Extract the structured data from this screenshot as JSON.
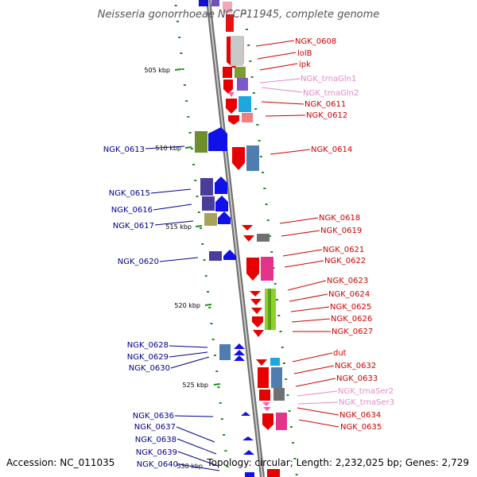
{
  "map": {
    "title": "Neisseria gonorrhoeae NCCP11945, complete genome",
    "accession": "Accession: NC_011035",
    "summary": "Topology: circular; Length: 2,232,025 bp; Genes: 2,729"
  },
  "scale_ticks": [
    "505 kbp",
    "510 kbp",
    "515 kbp",
    "520 kbp",
    "525 kbp",
    "530 kbp"
  ],
  "colors": {
    "plus_label": "#cc0000",
    "minus_label": "#00008b",
    "trna_label": "#e38ac8",
    "backbone": "#9a9a9a",
    "tick": "#228b22"
  },
  "plus_strand_labels": [
    "NGK_0608",
    "lolB",
    "ipk",
    "NGK_trnaGln1",
    "NGK_trnaGln2",
    "NGK_0611",
    "NGK_0612",
    "NGK_0614",
    "NGK_0618",
    "NGK_0619",
    "NGK_0621",
    "NGK_0622",
    "NGK_0623",
    "NGK_0624",
    "NGK_0625",
    "NGK_0626",
    "NGK_0627",
    "dut",
    "NGK_0632",
    "NGK_0633",
    "NGK_trnaSer2",
    "NGK_trnaSer3",
    "NGK_0634",
    "NGK_0635"
  ],
  "minus_strand_labels": [
    "NGK_0613",
    "NGK_0615",
    "NGK_0616",
    "NGK_0617",
    "NGK_0620",
    "NGK_0628",
    "NGK_0629",
    "NGK_0630",
    "NGK_0636",
    "NGK_0637",
    "NGK_0638",
    "NGK_0639",
    "NGK_0640"
  ]
}
